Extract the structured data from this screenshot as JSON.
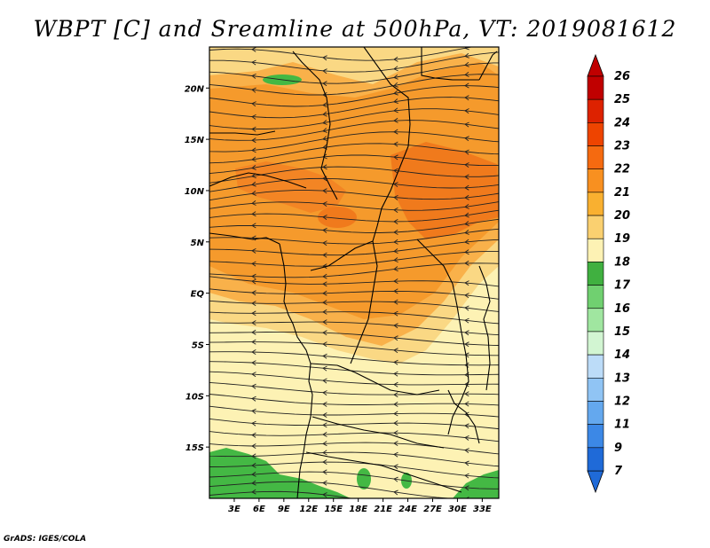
{
  "title": "WBPT [C] and Sreamline at 500hPa, VT: 2019081612",
  "credit": "GrADS: IGES/COLA",
  "map": {
    "lon_range": [
      0,
      35
    ],
    "lat_range": [
      -20,
      24
    ],
    "y_ticks": [
      {
        "lat": 20,
        "label": "20N"
      },
      {
        "lat": 15,
        "label": "15N"
      },
      {
        "lat": 10,
        "label": "10N"
      },
      {
        "lat": 5,
        "label": "5N"
      },
      {
        "lat": 0,
        "label": "EQ"
      },
      {
        "lat": -5,
        "label": "5S"
      },
      {
        "lat": -10,
        "label": "10S"
      },
      {
        "lat": -15,
        "label": "15S"
      }
    ],
    "x_ticks": [
      {
        "lon": 3,
        "label": "3E"
      },
      {
        "lon": 6,
        "label": "6E"
      },
      {
        "lon": 9,
        "label": "9E"
      },
      {
        "lon": 12,
        "label": "12E"
      },
      {
        "lon": 15,
        "label": "15E"
      },
      {
        "lon": 18,
        "label": "18E"
      },
      {
        "lon": 21,
        "label": "21E"
      },
      {
        "lon": 24,
        "label": "24E"
      },
      {
        "lon": 27,
        "label": "27E"
      },
      {
        "lon": 30,
        "label": "30E"
      },
      {
        "lon": 33,
        "label": "33E"
      }
    ]
  },
  "colorbar": {
    "labels": [
      "26",
      "25",
      "24",
      "23",
      "22",
      "21",
      "20",
      "19",
      "18",
      "17",
      "16",
      "15",
      "14",
      "13",
      "12",
      "11",
      "9",
      "7"
    ],
    "colors": [
      "#c00000",
      "#dd2200",
      "#ee4400",
      "#f56a10",
      "#f89020",
      "#f9b030",
      "#fad070",
      "#fdf2b4",
      "#40b040",
      "#70d070",
      "#a0e6a0",
      "#d2f5d2",
      "#bcdcf8",
      "#90c4f4",
      "#64a8ee",
      "#3c88e6",
      "#1f6ad8"
    ]
  }
}
